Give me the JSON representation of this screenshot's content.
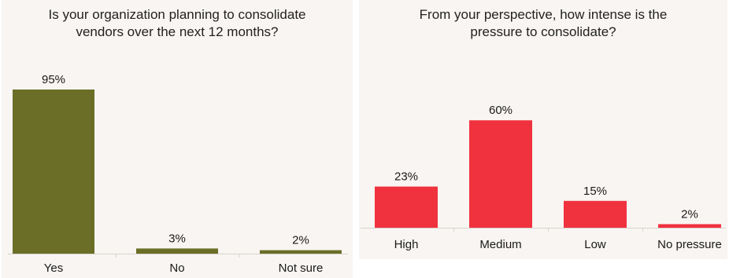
{
  "chart_data": [
    {
      "type": "bar",
      "title": "Is your organization planning to consolidate\nvendors over the next 12 months?",
      "categories": [
        "Yes",
        "No",
        "Not sure"
      ],
      "values": [
        95,
        3,
        2
      ],
      "data_labels": [
        "95%",
        "3%",
        "2%"
      ],
      "color": "#6b6e27",
      "ylim": [
        0,
        100
      ],
      "grid": false,
      "xlabel": "",
      "ylabel": ""
    },
    {
      "type": "bar",
      "title": "From your perspective, how intense is the\npressure to consolidate?",
      "categories": [
        "High",
        "Medium",
        "Low",
        "No pressure"
      ],
      "values": [
        23,
        60,
        15,
        2
      ],
      "data_labels": [
        "23%",
        "60%",
        "15%",
        "2%"
      ],
      "color": "#f0323f",
      "ylim": [
        0,
        100
      ],
      "grid": false,
      "xlabel": "",
      "ylabel": ""
    }
  ]
}
